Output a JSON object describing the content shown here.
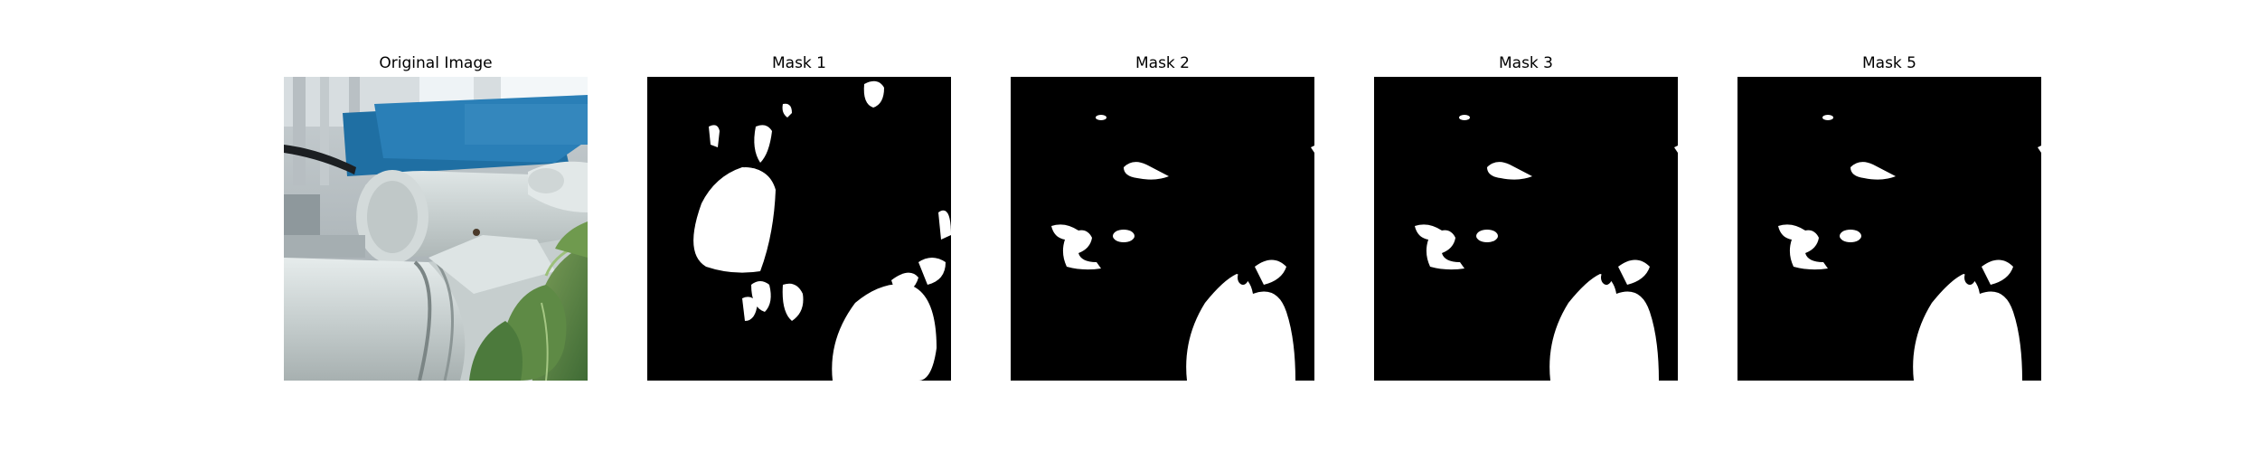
{
  "panels": [
    {
      "title": "Original Image"
    },
    {
      "title": "Mask 1"
    },
    {
      "title": "Mask 2"
    },
    {
      "title": "Mask 3"
    },
    {
      "title": "Mask 5"
    }
  ]
}
